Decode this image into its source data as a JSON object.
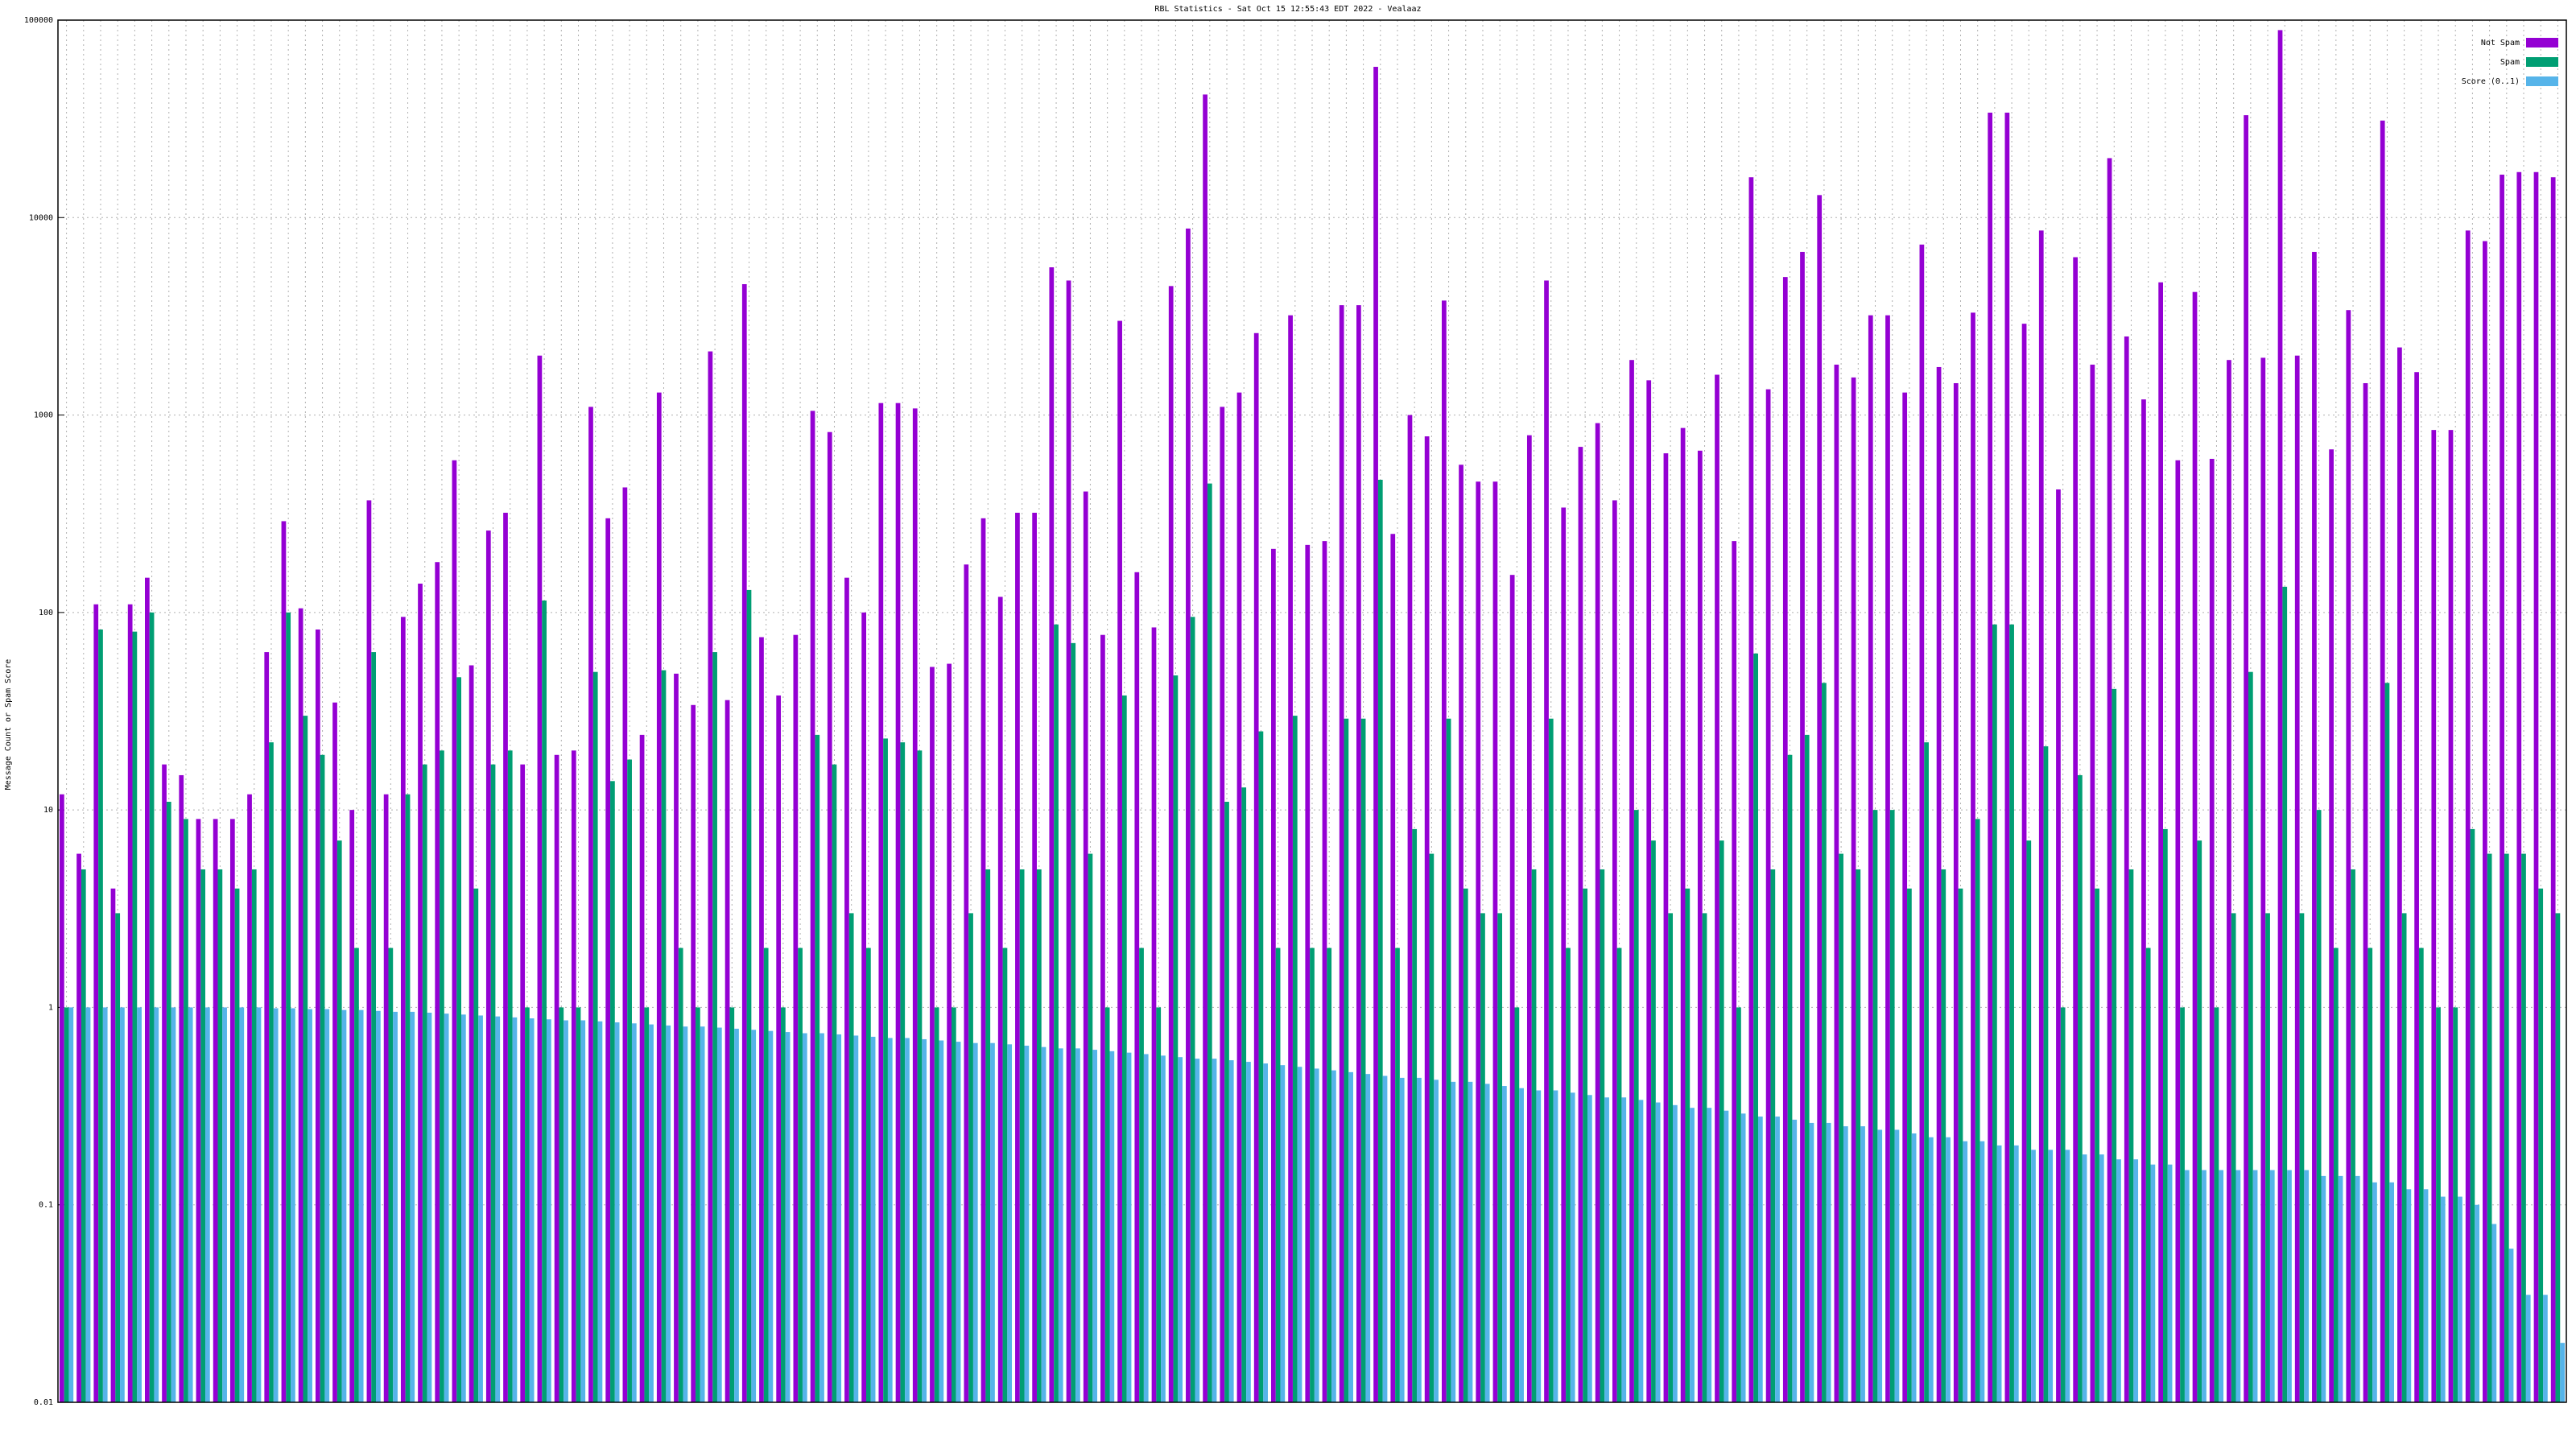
{
  "chart_data": {
    "type": "bar",
    "title": "RBL Statistics - Sat Oct 15 12:55:43 EDT 2022 - Vealaaz",
    "y_label": "Message Count or Spam Score",
    "log_scale": true,
    "grid": true,
    "legend": "top-right",
    "categories": [
      null,
      null,
      null,
      null,
      null,
      null,
      null,
      null,
      null,
      null,
      null,
      null,
      null,
      null,
      null,
      null,
      null,
      null,
      null,
      null,
      null,
      null,
      null,
      null,
      null,
      null,
      null,
      null,
      null,
      null,
      null,
      null,
      null,
      null,
      null,
      null,
      null,
      null,
      null,
      null,
      null,
      null,
      null,
      null,
      null,
      null,
      null,
      null,
      null,
      null,
      null,
      null,
      null,
      null,
      null,
      null,
      null,
      null,
      null,
      null,
      null,
      null,
      null,
      null,
      null,
      null,
      null,
      null,
      null,
      null,
      null,
      null,
      null,
      null,
      null,
      null,
      null,
      null,
      null,
      null,
      null,
      null,
      null,
      null,
      null,
      null,
      null,
      null,
      null,
      null,
      null,
      null,
      null,
      null,
      null,
      null,
      null,
      null,
      null,
      null,
      null,
      null,
      null,
      null,
      null,
      null,
      null,
      null,
      null,
      null,
      null,
      null,
      null,
      null,
      null,
      null,
      null,
      null,
      null,
      null,
      null,
      null,
      null,
      null,
      null,
      null,
      null,
      null,
      null,
      null,
      null,
      null,
      null,
      null,
      null,
      null,
      null,
      null,
      null,
      null,
      null,
      null,
      null,
      null,
      null,
      null,
      null
    ],
    "series": [
      {
        "name": "Not Spam",
        "color": "#9400d3",
        "values": [
          12,
          6,
          110,
          4,
          110,
          150,
          17,
          15,
          9,
          9,
          9,
          12,
          63,
          290,
          105,
          82,
          35,
          10,
          370,
          12,
          95,
          140,
          180,
          590,
          54,
          260,
          320,
          17,
          2000,
          19,
          20,
          1100,
          300,
          430,
          24,
          1300,
          49,
          34,
          2100,
          36,
          4600,
          75,
          38,
          77,
          1050,
          820,
          150,
          100,
          1150,
          1150,
          1080,
          53,
          55,
          175,
          300,
          120,
          320,
          320,
          5600,
          4800,
          410,
          77,
          3000,
          160,
          84,
          4500,
          8800,
          42000,
          1100,
          1300,
          2600,
          210,
          3200,
          220,
          230,
          3600,
          3600,
          58000,
          250,
          1000,
          780,
          3800,
          560,
          460,
          460,
          155,
          790,
          4800,
          340,
          690,
          910,
          370,
          1900,
          1500,
          640,
          860,
          660,
          1600,
          230,
          16000,
          1350,
          5000,
          6700,
          13000,
          1800,
          1550,
          3200,
          3200,
          1300,
          7300,
          1750,
          1450,
          3300,
          34000,
          34000,
          2900,
          8600,
          420,
          6300,
          1800,
          20000,
          2500,
          1200,
          4700,
          590,
          4200,
          600,
          1900,
          33000,
          1950,
          89000,
          2000,
          6700,
          670,
          3400,
          1450,
          31000,
          2200,
          1650,
          840,
          840,
          8600,
          7600,
          16500,
          17000,
          17000,
          16000
        ]
      },
      {
        "name": "Spam",
        "color": "#009e73",
        "values": [
          1,
          5,
          82,
          3,
          80,
          100,
          11,
          9,
          5,
          5,
          4,
          5,
          22,
          100,
          30,
          19,
          7,
          2,
          63,
          2,
          12,
          17,
          20,
          47,
          4,
          17,
          20,
          1,
          115,
          1,
          1,
          50,
          14,
          18,
          1,
          51,
          2,
          1,
          63,
          1,
          130,
          2,
          1,
          2,
          24,
          17,
          3,
          2,
          23,
          22,
          20,
          1,
          1,
          3,
          5,
          2,
          5,
          5,
          87,
          70,
          6,
          1,
          38,
          2,
          1,
          48,
          95,
          450,
          11,
          13,
          25,
          2,
          30,
          2,
          2,
          29,
          29,
          470,
          2,
          8,
          6,
          29,
          4,
          3,
          3,
          1,
          5,
          29,
          2,
          4,
          5,
          2,
          10,
          7,
          3,
          4,
          3,
          7,
          1,
          62,
          5,
          19,
          24,
          44,
          6,
          5,
          10,
          10,
          4,
          22,
          5,
          4,
          9,
          87,
          87,
          7,
          21,
          1,
          15,
          4,
          41,
          5,
          2,
          8,
          1,
          7,
          1,
          3,
          50,
          3,
          135,
          3,
          10,
          2,
          5,
          2,
          44,
          3,
          2,
          1,
          1,
          8,
          6,
          6,
          6,
          4,
          3
        ]
      },
      {
        "name": "Score (0..1)",
        "color": "#56b4e9",
        "values": [
          1,
          1,
          1,
          1,
          1,
          1,
          1,
          1,
          1,
          1,
          1,
          1,
          0.99,
          0.99,
          0.98,
          0.98,
          0.97,
          0.97,
          0.96,
          0.95,
          0.95,
          0.94,
          0.93,
          0.92,
          0.91,
          0.9,
          0.89,
          0.88,
          0.87,
          0.86,
          0.86,
          0.85,
          0.84,
          0.83,
          0.82,
          0.81,
          0.8,
          0.8,
          0.79,
          0.78,
          0.77,
          0.76,
          0.75,
          0.74,
          0.74,
          0.73,
          0.72,
          0.71,
          0.7,
          0.7,
          0.69,
          0.68,
          0.67,
          0.66,
          0.66,
          0.65,
          0.64,
          0.63,
          0.62,
          0.62,
          0.61,
          0.6,
          0.59,
          0.58,
          0.57,
          0.56,
          0.55,
          0.55,
          0.54,
          0.53,
          0.52,
          0.51,
          0.5,
          0.49,
          0.48,
          0.47,
          0.46,
          0.45,
          0.44,
          0.44,
          0.43,
          0.42,
          0.42,
          0.41,
          0.4,
          0.39,
          0.38,
          0.38,
          0.37,
          0.36,
          0.35,
          0.35,
          0.34,
          0.33,
          0.32,
          0.31,
          0.31,
          0.3,
          0.29,
          0.28,
          0.28,
          0.27,
          0.26,
          0.26,
          0.25,
          0.25,
          0.24,
          0.24,
          0.23,
          0.22,
          0.22,
          0.21,
          0.21,
          0.2,
          0.2,
          0.19,
          0.19,
          0.19,
          0.18,
          0.18,
          0.17,
          0.17,
          0.16,
          0.16,
          0.15,
          0.15,
          0.15,
          0.15,
          0.15,
          0.15,
          0.15,
          0.15,
          0.14,
          0.14,
          0.14,
          0.13,
          0.13,
          0.12,
          0.12,
          0.11,
          0.11,
          0.1,
          0.08,
          0.06,
          0.035,
          0.035,
          0.02
        ]
      }
    ],
    "ylim": [
      0.01,
      100000
    ],
    "yticks": [
      0.01,
      0.1,
      1,
      10,
      100,
      1000,
      10000,
      100000
    ]
  }
}
